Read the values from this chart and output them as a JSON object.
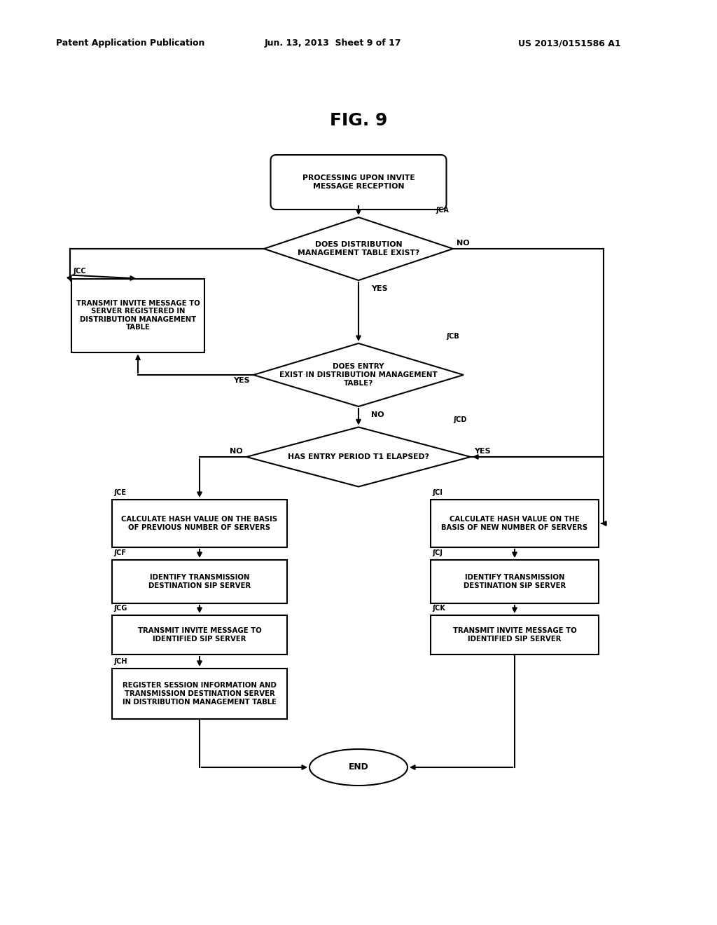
{
  "title": "FIG. 9",
  "header_left": "Patent Application Publication",
  "header_mid": "Jun. 13, 2013  Sheet 9 of 17",
  "header_right": "US 2013/0151586 A1",
  "bg_color": "#ffffff",
  "fig_w": 10.24,
  "fig_h": 13.2,
  "dpi": 100
}
